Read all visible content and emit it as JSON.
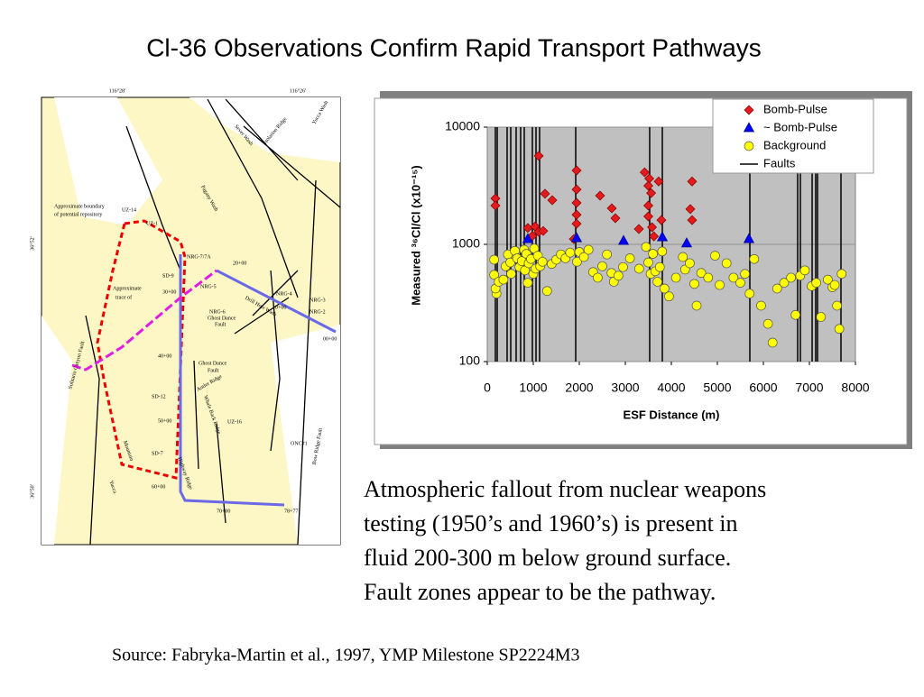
{
  "slide": {
    "title": "Cl-36 Observations Confirm Rapid Transport Pathways",
    "body": [
      "Atmospheric fallout from nuclear weapons",
      "testing (1950’s and 1960’s) is present in",
      "fluid 200-300 m below ground surface.",
      "Fault zones appear to be the pathway."
    ],
    "source": "Source: Fabryka-Martin et al., 1997, YMP Milestone SP2224M3"
  },
  "map": {
    "labels": [
      "116°28'",
      "116°26'",
      "36°52'",
      "36°50'",
      "Yucca Wash",
      "Isolation Ridge",
      "Sever Wash",
      "Pagany Wash",
      "Approximate boundary",
      "of potential repository",
      "UZ-14",
      "UZ-1",
      "NRG-7/7A",
      "20+00",
      "SD-9",
      "NRG-5",
      "30+00",
      "NRG-4",
      "NRG-3",
      "NRG-2",
      "10+00",
      "00+00",
      "Approximate",
      "trace of",
      "NRG-6",
      "Ghost Dance",
      "Fault",
      "Ghost Dance",
      "Fault",
      "40+00",
      "Antler Ridge",
      "SD-12",
      "50+00",
      "UZ-16",
      "Whale Back Ridge",
      "ONC#1",
      "Bow Ridge Fault",
      "SD-7",
      "Solitario Canyon Fault",
      "Highway Ridge",
      "Yucca",
      "Mountain",
      "60+00",
      "70+00",
      "78+77",
      "Drill Hole Wash"
    ]
  },
  "chart_data": {
    "type": "scatter",
    "xlabel": "ESF Distance (m)",
    "ylabel": "Measured ³⁶Cl/Cl (x10⁻¹⁵)",
    "xlim": [
      0,
      8000
    ],
    "xticks": [
      0,
      1000,
      2000,
      3000,
      4000,
      5000,
      6000,
      7000,
      8000
    ],
    "ylim": [
      100,
      10000
    ],
    "yticks": [
      100,
      1000,
      10000
    ],
    "log_y": true,
    "grid": true,
    "legend": "upper right",
    "series": [
      {
        "name": "Bomb-Pulse",
        "color": "#e41a1c",
        "marker": "diamond",
        "x": [
          176,
          176,
          1118,
          882,
          1040,
          1118,
          980,
          1216,
          1255,
          1412,
          1941,
          1941,
          1941,
          1941,
          1941,
          1882,
          2451,
          2706,
          2784,
          3294,
          3420,
          3520,
          3500,
          3560,
          3500,
          3500,
          3580,
          3620,
          3725,
          3784,
          4412,
          4451,
          4451
        ],
        "values": [
          2460,
          2140,
          5680,
          1380,
          1420,
          1280,
          1180,
          1300,
          2700,
          2380,
          4270,
          2940,
          2260,
          1790,
          1500,
          1110,
          2600,
          2030,
          1670,
          1350,
          4120,
          3640,
          3160,
          2740,
          2140,
          1730,
          1400,
          1170,
          3440,
          1610,
          2000,
          1610,
          3440
        ]
      },
      {
        "name": "~ Bomb-Pulse",
        "color": "#0000ff",
        "marker": "triangle",
        "x": [
          882,
          1941,
          2961,
          3804,
          4333,
          5686
        ],
        "values": [
          1110,
          1130,
          1070,
          1150,
          1020,
          1110
        ]
      },
      {
        "name": "Background",
        "color": "#ffff00",
        "marker": "circle",
        "x": [
          150,
          150,
          200,
          180,
          250,
          350,
          400,
          450,
          500,
          520,
          600,
          650,
          700,
          750,
          800,
          820,
          850,
          880,
          900,
          950,
          1000,
          1020,
          1050,
          1100,
          1150,
          1200,
          1300,
          1400,
          1500,
          1600,
          1700,
          1800,
          1950,
          2000,
          2100,
          2200,
          2300,
          2400,
          2500,
          2600,
          2700,
          2750,
          2850,
          2950,
          3100,
          3300,
          3450,
          3500,
          3550,
          3600,
          3650,
          3700,
          3750,
          3800,
          3850,
          3950,
          4100,
          4250,
          4300,
          4400,
          4500,
          4550,
          4650,
          4800,
          4950,
          5050,
          5200,
          5350,
          5500,
          5600,
          5700,
          5800,
          5950,
          6100,
          6200,
          6300,
          6450,
          6600,
          6700,
          6800,
          6900,
          7050,
          7150,
          7250,
          7400,
          7500,
          7550,
          7600,
          7650,
          7700
        ],
        "values": [
          740,
          550,
          380,
          420,
          480,
          500,
          650,
          820,
          700,
          560,
          880,
          760,
          640,
          720,
          900,
          600,
          830,
          470,
          690,
          750,
          560,
          920,
          620,
          800,
          650,
          710,
          400,
          680,
          740,
          820,
          760,
          850,
          710,
          860,
          780,
          900,
          580,
          520,
          650,
          820,
          570,
          480,
          540,
          640,
          760,
          620,
          950,
          700,
          560,
          830,
          590,
          480,
          640,
          870,
          420,
          360,
          520,
          780,
          610,
          690,
          460,
          300,
          570,
          520,
          800,
          450,
          690,
          520,
          470,
          560,
          380,
          750,
          300,
          210,
          145,
          420,
          470,
          520,
          250,
          540,
          600,
          440,
          470,
          240,
          500,
          430,
          450,
          300,
          190,
          560
        ]
      },
      {
        "name": "Faults",
        "color": "#000000",
        "marker": "vline",
        "x": [
          176,
          216,
          431,
          510,
          627,
          725,
          804,
          980,
          1059,
          1137,
          1922,
          3529,
          3804,
          5706,
          6745,
          6804,
          7059,
          7137,
          7176,
          7686
        ]
      }
    ]
  }
}
